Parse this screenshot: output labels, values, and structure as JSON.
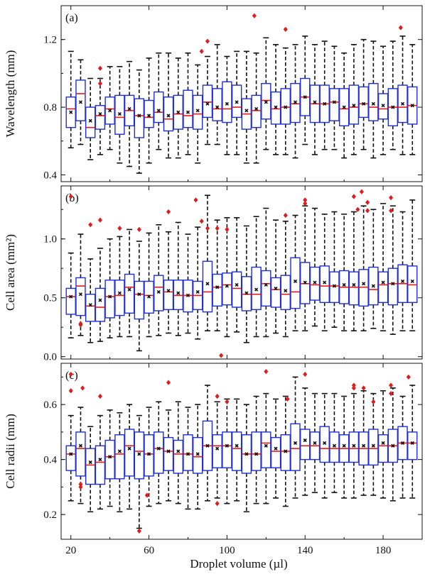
{
  "figure": {
    "xlabel": "Droplet volume (µl)",
    "xticks": [
      "20",
      "60",
      "100",
      "140",
      "180"
    ],
    "xtick_values": [
      20,
      60,
      100,
      140,
      180
    ]
  },
  "colors": {
    "box": "#1f2fd6",
    "median": "#e31a1c",
    "outlier": "#e31a1c",
    "mean": "#111111",
    "whisker": "#111111"
  },
  "chart_data": [
    {
      "type": "box",
      "panel_label": "(a)",
      "ylabel": "Wavelength (mm)",
      "ylim": [
        0.36,
        1.4
      ],
      "yticks": [
        0.4,
        0.8,
        1.2
      ],
      "ytick_labels": [
        "0.4",
        "0.8",
        "1.2"
      ],
      "xlim": [
        15,
        200
      ],
      "x": [
        20,
        25,
        30,
        35,
        40,
        45,
        50,
        55,
        60,
        65,
        70,
        75,
        80,
        85,
        90,
        95,
        100,
        105,
        110,
        115,
        120,
        125,
        130,
        135,
        140,
        145,
        150,
        155,
        160,
        165,
        170,
        175,
        180,
        185,
        190,
        195
      ],
      "q1": [
        0.68,
        0.72,
        0.62,
        0.67,
        0.7,
        0.64,
        0.69,
        0.62,
        0.68,
        0.71,
        0.66,
        0.67,
        0.68,
        0.67,
        0.74,
        0.72,
        0.71,
        0.74,
        0.67,
        0.68,
        0.73,
        0.7,
        0.7,
        0.71,
        0.75,
        0.71,
        0.71,
        0.72,
        0.69,
        0.7,
        0.74,
        0.72,
        0.73,
        0.69,
        0.71,
        0.7
      ],
      "median": [
        0.79,
        0.88,
        0.68,
        0.75,
        0.79,
        0.74,
        0.78,
        0.75,
        0.74,
        0.77,
        0.73,
        0.76,
        0.75,
        0.76,
        0.83,
        0.79,
        0.79,
        0.8,
        0.76,
        0.78,
        0.84,
        0.79,
        0.8,
        0.82,
        0.86,
        0.82,
        0.82,
        0.83,
        0.79,
        0.8,
        0.82,
        0.8,
        0.79,
        0.8,
        0.8,
        0.81
      ],
      "q3": [
        0.86,
        0.96,
        0.8,
        0.81,
        0.86,
        0.87,
        0.87,
        0.85,
        0.84,
        0.89,
        0.86,
        0.87,
        0.9,
        0.87,
        0.93,
        0.91,
        0.95,
        0.93,
        0.85,
        0.87,
        0.94,
        0.89,
        0.91,
        0.94,
        0.97,
        0.93,
        0.93,
        0.91,
        0.91,
        0.93,
        0.92,
        0.94,
        0.88,
        0.91,
        0.93,
        0.92
      ],
      "mean": [
        0.77,
        0.83,
        0.72,
        0.76,
        0.78,
        0.76,
        0.79,
        0.75,
        0.75,
        0.78,
        0.75,
        0.77,
        0.77,
        0.78,
        0.82,
        0.8,
        0.82,
        0.83,
        0.78,
        0.79,
        0.83,
        0.8,
        0.8,
        0.83,
        0.86,
        0.83,
        0.82,
        0.83,
        0.8,
        0.81,
        0.82,
        0.82,
        0.81,
        0.8,
        0.82,
        0.81
      ],
      "wlo": [
        0.56,
        0.58,
        0.49,
        0.52,
        0.55,
        0.47,
        0.45,
        0.41,
        0.47,
        0.55,
        0.5,
        0.5,
        0.52,
        0.47,
        0.58,
        0.58,
        0.52,
        0.52,
        0.47,
        0.47,
        0.55,
        0.52,
        0.52,
        0.5,
        0.58,
        0.52,
        0.55,
        0.55,
        0.5,
        0.52,
        0.55,
        0.5,
        0.52,
        0.55,
        0.52,
        0.52
      ],
      "whi": [
        1.13,
        1.08,
        0.97,
        0.97,
        1.04,
        1.04,
        1.07,
        1.02,
        1.09,
        1.12,
        1.12,
        1.09,
        1.12,
        1.05,
        1.1,
        1.17,
        1.1,
        1.13,
        1.13,
        1.12,
        1.21,
        1.17,
        1.15,
        1.17,
        1.22,
        1.17,
        1.19,
        1.16,
        1.12,
        1.17,
        1.2,
        1.19,
        1.16,
        1.19,
        1.22,
        1.17
      ],
      "outliers": [
        [
          35,
          1.03
        ],
        [
          35,
          0.94
        ],
        [
          87,
          1.13
        ],
        [
          90,
          1.19
        ],
        [
          114,
          1.34
        ],
        [
          130,
          1.26
        ],
        [
          189,
          1.27
        ]
      ]
    },
    {
      "type": "box",
      "panel_label": "(b)",
      "ylabel": "Cell area (mm²)",
      "ylim": [
        -0.02,
        1.45
      ],
      "yticks": [
        0.0,
        0.5,
        1.0
      ],
      "ytick_labels": [
        "0.0",
        "0.5",
        "1.0"
      ],
      "xlim": [
        15,
        200
      ],
      "x": [
        20,
        25,
        30,
        35,
        40,
        45,
        50,
        55,
        60,
        65,
        70,
        75,
        80,
        85,
        90,
        95,
        100,
        105,
        110,
        115,
        120,
        125,
        130,
        135,
        140,
        145,
        150,
        155,
        160,
        165,
        170,
        175,
        180,
        185,
        190,
        195
      ],
      "q1": [
        0.36,
        0.35,
        0.3,
        0.3,
        0.33,
        0.35,
        0.37,
        0.32,
        0.37,
        0.39,
        0.4,
        0.4,
        0.38,
        0.4,
        0.38,
        0.43,
        0.44,
        0.42,
        0.39,
        0.4,
        0.43,
        0.42,
        0.4,
        0.41,
        0.45,
        0.48,
        0.46,
        0.46,
        0.45,
        0.44,
        0.43,
        0.44,
        0.46,
        0.44,
        0.46,
        0.46
      ],
      "median": [
        0.51,
        0.6,
        0.43,
        0.42,
        0.51,
        0.52,
        0.59,
        0.53,
        0.52,
        0.59,
        0.55,
        0.52,
        0.52,
        0.52,
        0.55,
        0.59,
        0.61,
        0.58,
        0.53,
        0.53,
        0.62,
        0.57,
        0.53,
        0.55,
        0.62,
        0.61,
        0.6,
        0.6,
        0.59,
        0.59,
        0.59,
        0.57,
        0.61,
        0.62,
        0.62,
        0.61
      ],
      "q3": [
        0.58,
        0.67,
        0.53,
        0.58,
        0.65,
        0.65,
        0.7,
        0.64,
        0.64,
        0.69,
        0.65,
        0.65,
        0.65,
        0.64,
        0.81,
        0.7,
        0.71,
        0.72,
        0.68,
        0.76,
        0.73,
        0.67,
        0.69,
        0.84,
        0.8,
        0.76,
        0.77,
        0.72,
        0.73,
        0.72,
        0.74,
        0.76,
        0.72,
        0.75,
        0.78,
        0.77
      ],
      "mean": [
        0.51,
        0.53,
        0.44,
        0.48,
        0.51,
        0.54,
        0.57,
        0.53,
        0.51,
        0.55,
        0.56,
        0.54,
        0.52,
        0.55,
        0.62,
        0.59,
        0.6,
        0.61,
        0.54,
        0.57,
        0.61,
        0.58,
        0.56,
        0.64,
        0.63,
        0.63,
        0.63,
        0.6,
        0.61,
        0.61,
        0.62,
        0.6,
        0.63,
        0.62,
        0.64,
        0.64
      ],
      "wlo": [
        0.16,
        0.18,
        0.12,
        0.13,
        0.16,
        0.17,
        0.17,
        0.05,
        0.17,
        0.18,
        0.2,
        0.18,
        0.2,
        0.15,
        0.22,
        0.22,
        0.17,
        0.21,
        0.12,
        0.17,
        0.17,
        0.2,
        0.17,
        0.22,
        0.22,
        0.26,
        0.22,
        0.25,
        0.22,
        0.22,
        0.22,
        0.24,
        0.22,
        0.19,
        0.22,
        0.22
      ],
      "whi": [
        0.88,
        1.04,
        0.83,
        0.92,
        1.0,
        1.02,
        1.08,
        0.98,
        1.05,
        1.12,
        1.06,
        1.14,
        1.04,
        1.1,
        1.37,
        1.16,
        1.18,
        1.18,
        1.11,
        1.19,
        1.26,
        1.16,
        1.15,
        1.2,
        1.28,
        1.26,
        1.21,
        1.23,
        1.21,
        1.23,
        1.28,
        1.25,
        1.3,
        1.28,
        1.23,
        1.33
      ],
      "outliers": [
        [
          20,
          1.36
        ],
        [
          25,
          0.28
        ],
        [
          25,
          0.27
        ],
        [
          30,
          1.12
        ],
        [
          35,
          1.16
        ],
        [
          45,
          1.09
        ],
        [
          55,
          1.08
        ],
        [
          70,
          1.23
        ],
        [
          84,
          1.33
        ],
        [
          87,
          1.15
        ],
        [
          90,
          1.09
        ],
        [
          95,
          1.09
        ],
        [
          97,
          0.01
        ],
        [
          100,
          1.08
        ],
        [
          130,
          1.2
        ],
        [
          140,
          1.3
        ],
        [
          140,
          1.33
        ],
        [
          165,
          1.36
        ],
        [
          167,
          1.25
        ],
        [
          169,
          1.4
        ],
        [
          172,
          1.24
        ],
        [
          172,
          1.31
        ],
        [
          184,
          1.35
        ],
        [
          184,
          1.24
        ]
      ]
    },
    {
      "type": "box",
      "panel_label": "(c)",
      "ylabel": "Cell radii (mm)",
      "ylim": [
        0.11,
        0.75
      ],
      "yticks": [
        0.2,
        0.4,
        0.6
      ],
      "ytick_labels": [
        "0.2",
        "0.4",
        "0.6"
      ],
      "xlim": [
        15,
        200
      ],
      "xlabel": "Droplet volume (µl)",
      "x": [
        20,
        25,
        30,
        35,
        40,
        45,
        50,
        55,
        60,
        65,
        70,
        75,
        80,
        85,
        90,
        95,
        100,
        105,
        110,
        115,
        120,
        125,
        130,
        135,
        140,
        145,
        150,
        155,
        160,
        165,
        170,
        175,
        180,
        185,
        190,
        195
      ],
      "q1": [
        0.36,
        0.34,
        0.31,
        0.31,
        0.33,
        0.33,
        0.34,
        0.33,
        0.34,
        0.35,
        0.36,
        0.35,
        0.36,
        0.35,
        0.36,
        0.37,
        0.37,
        0.36,
        0.35,
        0.36,
        0.37,
        0.37,
        0.36,
        0.36,
        0.4,
        0.4,
        0.39,
        0.39,
        0.39,
        0.39,
        0.38,
        0.38,
        0.39,
        0.39,
        0.4,
        0.4
      ],
      "median": [
        0.42,
        0.44,
        0.38,
        0.39,
        0.41,
        0.42,
        0.45,
        0.43,
        0.42,
        0.44,
        0.43,
        0.42,
        0.42,
        0.41,
        0.45,
        0.45,
        0.45,
        0.44,
        0.42,
        0.42,
        0.46,
        0.43,
        0.43,
        0.44,
        0.45,
        0.45,
        0.44,
        0.44,
        0.44,
        0.44,
        0.44,
        0.44,
        0.45,
        0.45,
        0.46,
        0.46
      ],
      "q3": [
        0.45,
        0.5,
        0.44,
        0.45,
        0.47,
        0.49,
        0.51,
        0.5,
        0.49,
        0.5,
        0.48,
        0.47,
        0.49,
        0.48,
        0.54,
        0.49,
        0.5,
        0.5,
        0.49,
        0.5,
        0.5,
        0.48,
        0.49,
        0.53,
        0.51,
        0.5,
        0.52,
        0.5,
        0.49,
        0.5,
        0.5,
        0.51,
        0.49,
        0.51,
        0.52,
        0.5
      ],
      "mean": [
        0.42,
        0.45,
        0.39,
        0.4,
        0.41,
        0.43,
        0.44,
        0.42,
        0.42,
        0.44,
        0.43,
        0.43,
        0.42,
        0.42,
        0.45,
        0.44,
        0.45,
        0.45,
        0.42,
        0.42,
        0.45,
        0.44,
        0.43,
        0.46,
        0.47,
        0.46,
        0.46,
        0.45,
        0.45,
        0.45,
        0.45,
        0.45,
        0.46,
        0.45,
        0.46,
        0.46
      ],
      "wlo": [
        0.25,
        0.24,
        0.21,
        0.22,
        0.23,
        0.21,
        0.22,
        0.15,
        0.23,
        0.24,
        0.25,
        0.24,
        0.22,
        0.22,
        0.25,
        0.26,
        0.24,
        0.25,
        0.21,
        0.24,
        0.24,
        0.26,
        0.23,
        0.26,
        0.27,
        0.28,
        0.26,
        0.28,
        0.26,
        0.26,
        0.27,
        0.27,
        0.26,
        0.25,
        0.26,
        0.26
      ],
      "whi": [
        0.56,
        0.59,
        0.52,
        0.56,
        0.58,
        0.57,
        0.6,
        0.56,
        0.59,
        0.61,
        0.58,
        0.61,
        0.59,
        0.6,
        0.67,
        0.61,
        0.62,
        0.62,
        0.6,
        0.63,
        0.64,
        0.62,
        0.63,
        0.7,
        0.66,
        0.64,
        0.64,
        0.64,
        0.63,
        0.64,
        0.65,
        0.64,
        0.65,
        0.66,
        0.63,
        0.67
      ],
      "outliers": [
        [
          20,
          0.71
        ],
        [
          20,
          0.65
        ],
        [
          25,
          0.31
        ],
        [
          25,
          0.3
        ],
        [
          26,
          0.66
        ],
        [
          35,
          0.63
        ],
        [
          55,
          0.14
        ],
        [
          59,
          0.27
        ],
        [
          70,
          0.68
        ],
        [
          95,
          0.24
        ],
        [
          95,
          0.63
        ],
        [
          100,
          0.61
        ],
        [
          120,
          0.72
        ],
        [
          131,
          0.62
        ],
        [
          140,
          0.71
        ],
        [
          165,
          0.67
        ],
        [
          165,
          0.66
        ],
        [
          170,
          0.66
        ],
        [
          175,
          0.61
        ],
        [
          184,
          0.67
        ],
        [
          184,
          0.64
        ],
        [
          193,
          0.7
        ]
      ]
    }
  ]
}
